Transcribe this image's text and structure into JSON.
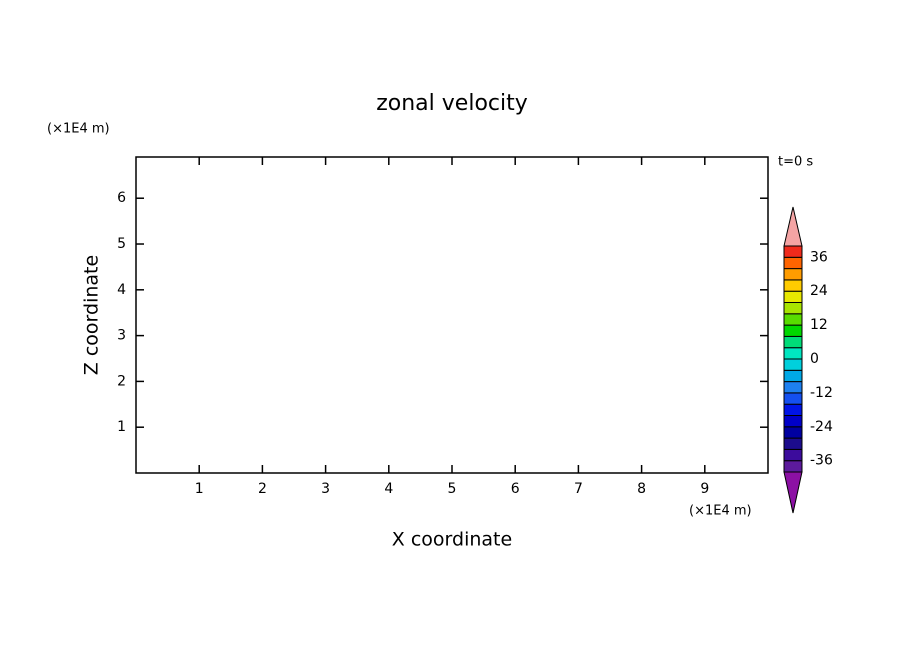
{
  "chart_data": {
    "type": "contour",
    "title": "zonal velocity",
    "x_label": "X coordinate",
    "y_label": "Z coordinate",
    "x_unit": "(×1E4 m)",
    "y_unit": "(×1E4 m)",
    "time_label": "t=0 s",
    "xlim": [
      0,
      10
    ],
    "xticks": [
      1,
      2,
      3,
      4,
      5,
      6,
      7,
      8,
      9
    ],
    "ylim": [
      0,
      6.9
    ],
    "yticks": [
      1,
      2,
      3,
      4,
      5,
      6
    ],
    "colorbar": {
      "levels": [
        -40,
        -36,
        -32,
        -28,
        -24,
        -20,
        -16,
        -12,
        -8,
        -4,
        0,
        4,
        8,
        12,
        16,
        20,
        24,
        28,
        32,
        36,
        40
      ],
      "colors": [
        "#5c1a9c",
        "#3c0c9c",
        "#1c0c8c",
        "#0000a0",
        "#0000c8",
        "#0014e6",
        "#1450f0",
        "#1e80f0",
        "#00a8e6",
        "#00d0dc",
        "#00e6c0",
        "#00dc78",
        "#00d800",
        "#58dc00",
        "#a8e400",
        "#e8e800",
        "#ffcc00",
        "#ff9c00",
        "#ff6400",
        "#f02a1c"
      ],
      "under_color": "#8c10a4",
      "over_color": "#f4a4a4",
      "ticks": [
        -36,
        -24,
        -12,
        0,
        12,
        24,
        36
      ]
    }
  }
}
